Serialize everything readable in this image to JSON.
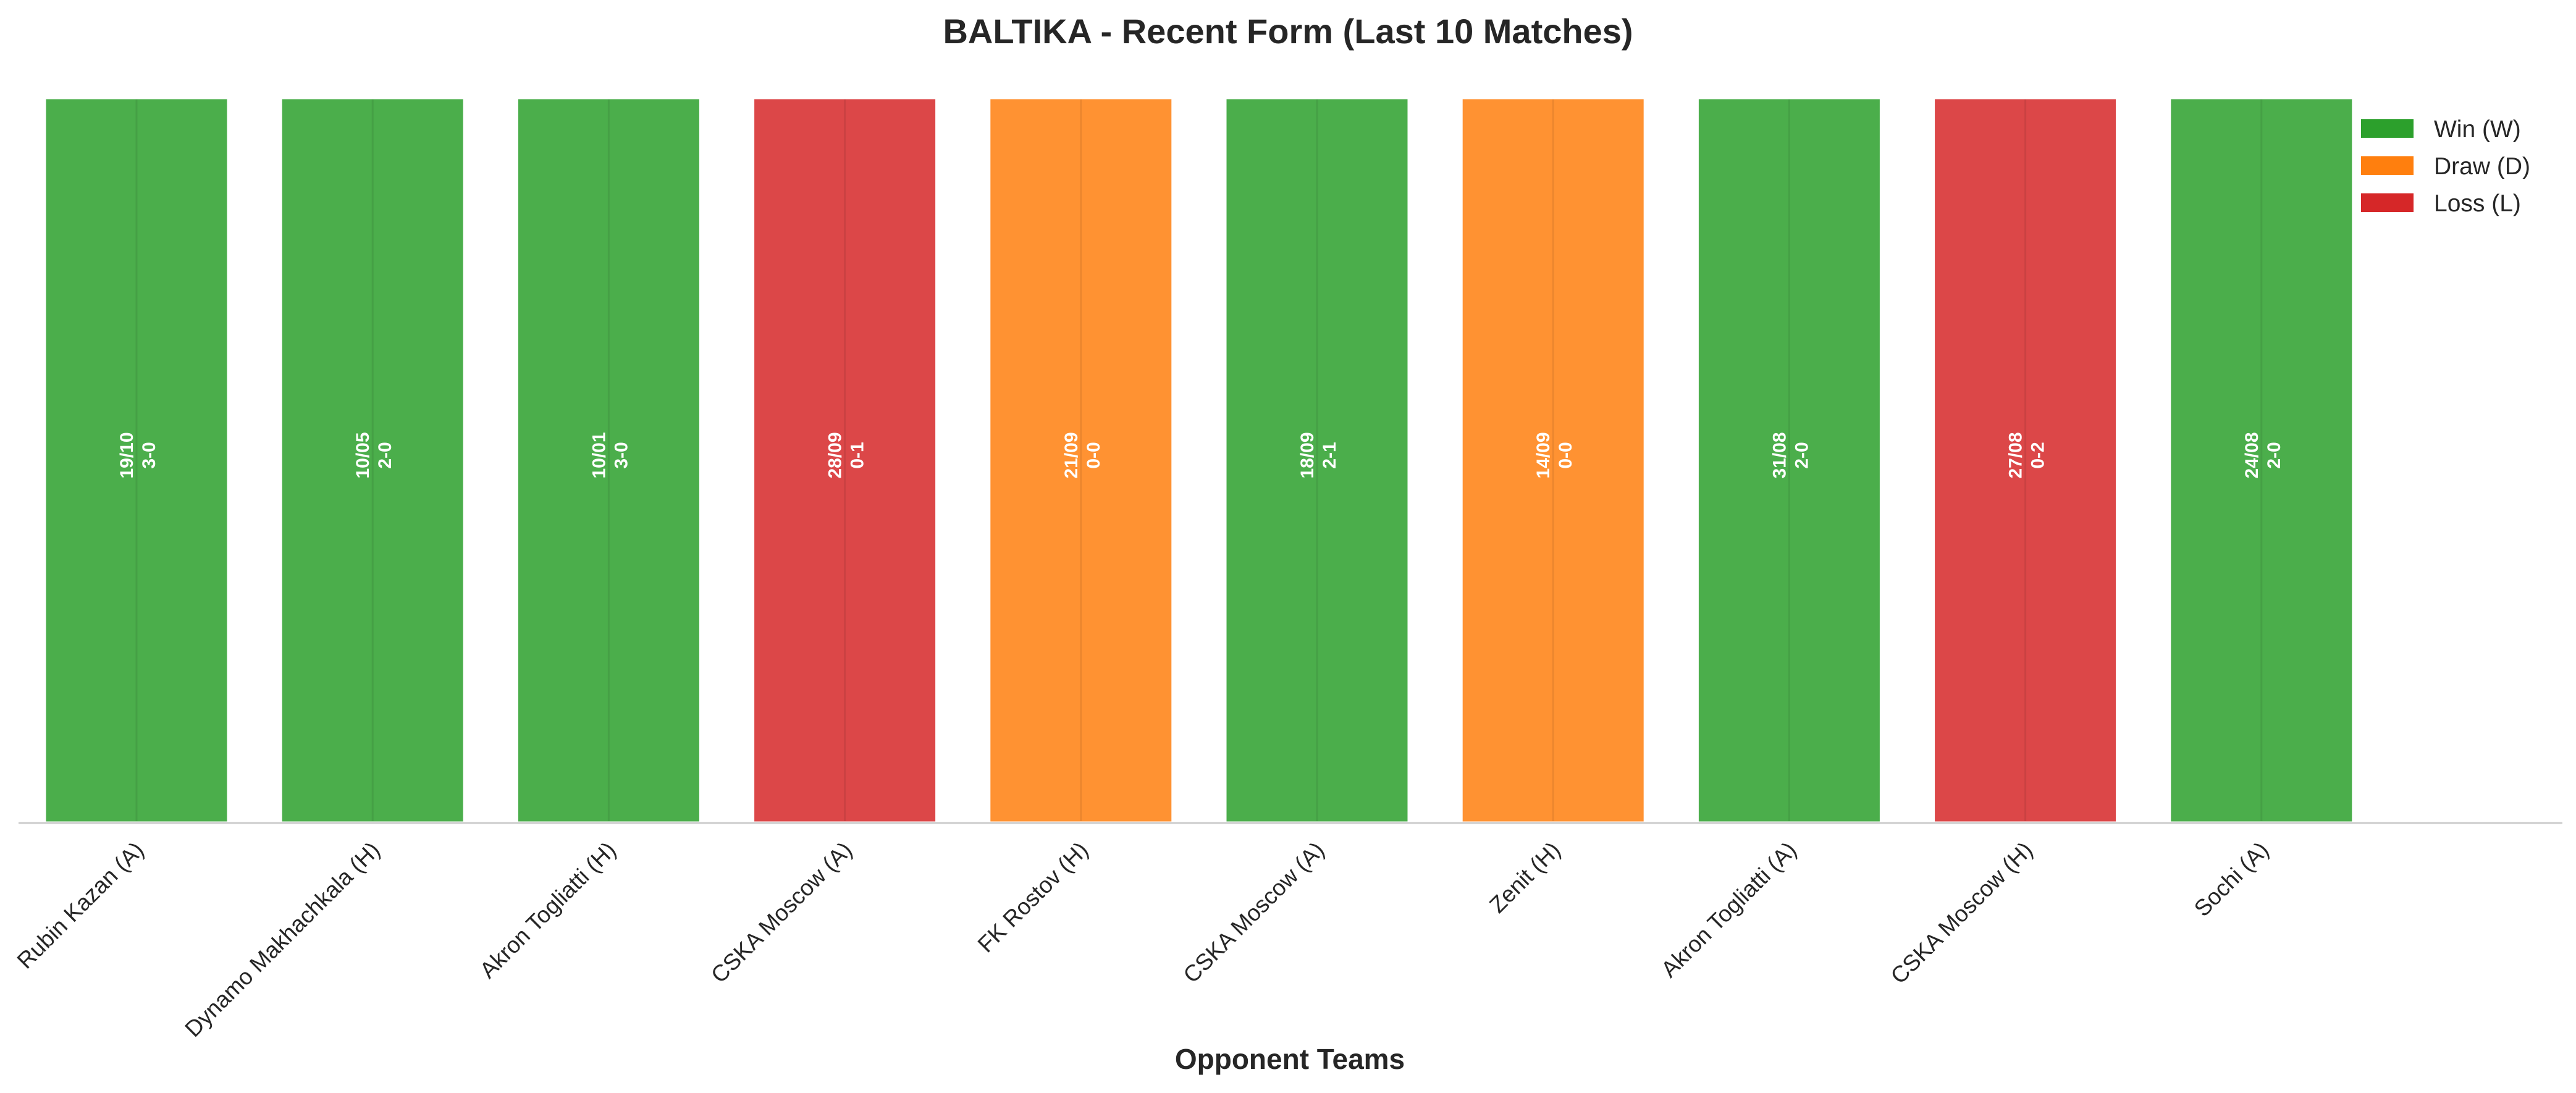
{
  "chart_data": {
    "type": "bar",
    "title": "BALTIKA - Recent Form (Last 10 Matches)",
    "xlabel": "Opponent Teams",
    "ylabel": "",
    "grid": true,
    "legend_position": "top-right",
    "categories": [
      "Rubin Kazan (A)",
      "Dynamo Makhachkala (H)",
      "Akron Togliatti (H)",
      "CSKA Moscow (A)",
      "FK Rostov (H)",
      "CSKA Moscow (A)",
      "Zenit (H)",
      "Akron Togliatti (A)",
      "CSKA Moscow (H)",
      "Sochi (A)"
    ],
    "values": [
      1,
      1,
      1,
      1,
      1,
      1,
      1,
      1,
      1,
      1
    ],
    "results": [
      "W",
      "W",
      "W",
      "L",
      "D",
      "W",
      "D",
      "W",
      "L",
      "W"
    ],
    "dates": [
      "19/10",
      "10/05",
      "10/01",
      "28/09",
      "21/09",
      "18/09",
      "14/09",
      "31/08",
      "27/08",
      "24/08"
    ],
    "scores": [
      "3-0",
      "2-0",
      "3-0",
      "0-1",
      "0-0",
      "2-1",
      "0-0",
      "2-0",
      "0-2",
      "2-0"
    ],
    "legend": [
      {
        "key": "W",
        "label": "Win (W)",
        "color": "#2ca02c"
      },
      {
        "key": "D",
        "label": "Draw (D)",
        "color": "#ff7f0e"
      },
      {
        "key": "L",
        "label": "Loss (L)",
        "color": "#d62728"
      }
    ]
  }
}
